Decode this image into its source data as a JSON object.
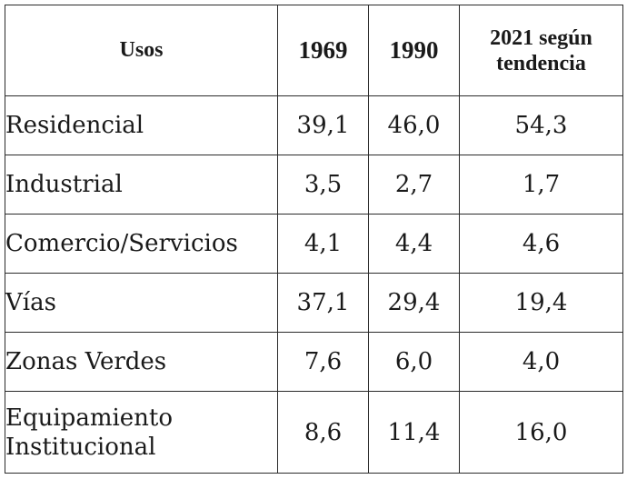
{
  "table": {
    "headers": {
      "uso": "Usos",
      "y1969": "1969",
      "y1990": "1990",
      "y2021_line1": "2021 según",
      "y2021_line2": "tendencia"
    },
    "rows": [
      {
        "uso_line1": "Residencial",
        "uso_line2": "",
        "v1969": "39,1",
        "v1990": "46,0",
        "v2021": "54,3"
      },
      {
        "uso_line1": "Industrial",
        "uso_line2": "",
        "v1969": "3,5",
        "v1990": "2,7",
        "v2021": "1,7"
      },
      {
        "uso_line1": "Comercio/Servicios",
        "uso_line2": "",
        "v1969": "4,1",
        "v1990": "4,4",
        "v2021": "4,6"
      },
      {
        "uso_line1": "Vías",
        "uso_line2": "",
        "v1969": "37,1",
        "v1990": "29,4",
        "v2021": "19,4"
      },
      {
        "uso_line1": "Zonas Verdes",
        "uso_line2": "",
        "v1969": "7,6",
        "v1990": "6,0",
        "v2021": "4,0"
      },
      {
        "uso_line1": "Equipamiento",
        "uso_line2": "Institucional",
        "v1969": "8,6",
        "v1990": "11,4",
        "v2021": "16,0"
      }
    ]
  }
}
